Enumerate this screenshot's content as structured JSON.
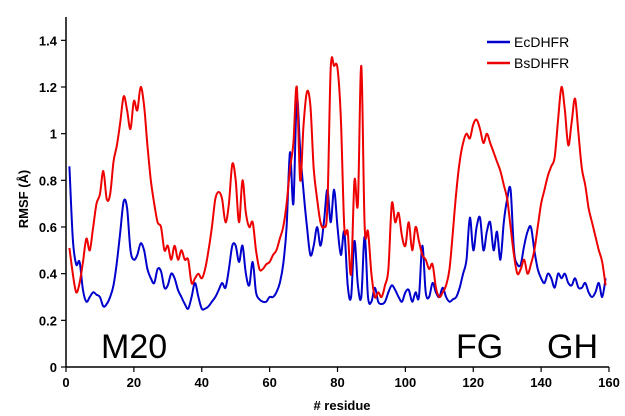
{
  "chart_data": {
    "type": "line",
    "title": "",
    "xlabel": "# residue",
    "ylabel": "RMSF (Å)",
    "xlim": [
      0,
      160
    ],
    "ylim": [
      0,
      1.5
    ],
    "x_ticks": [
      0,
      20,
      40,
      60,
      80,
      100,
      120,
      140,
      160
    ],
    "x_tick_labels": [
      "0",
      "20",
      "40",
      "60",
      "80",
      "100",
      "120",
      "140",
      "160"
    ],
    "y_ticks": [
      0,
      0.2,
      0.4,
      0.6,
      0.8,
      1.0,
      1.2,
      1.4
    ],
    "y_tick_labels": [
      "0",
      "0.2",
      "0.4",
      "0.6",
      "0.8",
      "1",
      "1.2",
      "1.4"
    ],
    "grid": false,
    "legend_position": "top-right",
    "annotations": [
      "M20",
      "FG",
      "GH"
    ],
    "series": [
      {
        "name": "EcDHFR",
        "color": "#0000cc",
        "points": [
          [
            1,
            0.86
          ],
          [
            2,
            0.55
          ],
          [
            3,
            0.44
          ],
          [
            4,
            0.45
          ],
          [
            5,
            0.33
          ],
          [
            6,
            0.28
          ],
          [
            7,
            0.3
          ],
          [
            8,
            0.32
          ],
          [
            9,
            0.31
          ],
          [
            10,
            0.3
          ],
          [
            11,
            0.26
          ],
          [
            12,
            0.27
          ],
          [
            13,
            0.3
          ],
          [
            14,
            0.35
          ],
          [
            15,
            0.45
          ],
          [
            16,
            0.58
          ],
          [
            17,
            0.71
          ],
          [
            18,
            0.68
          ],
          [
            19,
            0.5
          ],
          [
            20,
            0.46
          ],
          [
            21,
            0.48
          ],
          [
            22,
            0.53
          ],
          [
            23,
            0.5
          ],
          [
            24,
            0.42
          ],
          [
            25,
            0.38
          ],
          [
            26,
            0.36
          ],
          [
            27,
            0.42
          ],
          [
            28,
            0.41
          ],
          [
            29,
            0.34
          ],
          [
            30,
            0.35
          ],
          [
            31,
            0.4
          ],
          [
            32,
            0.38
          ],
          [
            33,
            0.33
          ],
          [
            34,
            0.3
          ],
          [
            35,
            0.27
          ],
          [
            36,
            0.25
          ],
          [
            37,
            0.3
          ],
          [
            38,
            0.36
          ],
          [
            39,
            0.3
          ],
          [
            40,
            0.25
          ],
          [
            41,
            0.25
          ],
          [
            42,
            0.26
          ],
          [
            43,
            0.28
          ],
          [
            44,
            0.3
          ],
          [
            45,
            0.33
          ],
          [
            46,
            0.36
          ],
          [
            47,
            0.34
          ],
          [
            48,
            0.42
          ],
          [
            49,
            0.52
          ],
          [
            50,
            0.52
          ],
          [
            51,
            0.45
          ],
          [
            52,
            0.52
          ],
          [
            53,
            0.4
          ],
          [
            54,
            0.35
          ],
          [
            55,
            0.45
          ],
          [
            56,
            0.32
          ],
          [
            57,
            0.29
          ],
          [
            58,
            0.28
          ],
          [
            59,
            0.28
          ],
          [
            60,
            0.3
          ],
          [
            61,
            0.3
          ],
          [
            62,
            0.32
          ],
          [
            63,
            0.36
          ],
          [
            64,
            0.44
          ],
          [
            65,
            0.6
          ],
          [
            66,
            0.92
          ],
          [
            67,
            0.7
          ],
          [
            68,
            1.15
          ],
          [
            69,
            0.93
          ],
          [
            70,
            0.75
          ],
          [
            71,
            0.6
          ],
          [
            72,
            0.48
          ],
          [
            73,
            0.52
          ],
          [
            74,
            0.6
          ],
          [
            75,
            0.52
          ],
          [
            76,
            0.62
          ],
          [
            77,
            0.76
          ],
          [
            78,
            0.62
          ],
          [
            79,
            0.76
          ],
          [
            80,
            0.6
          ],
          [
            81,
            0.48
          ],
          [
            82,
            0.58
          ],
          [
            83,
            0.35
          ],
          [
            84,
            0.3
          ],
          [
            85,
            0.54
          ],
          [
            86,
            0.35
          ],
          [
            87,
            0.3
          ],
          [
            88,
            0.56
          ],
          [
            89,
            0.3
          ],
          [
            90,
            0.28
          ],
          [
            91,
            0.34
          ],
          [
            92,
            0.28
          ],
          [
            93,
            0.27
          ],
          [
            94,
            0.28
          ],
          [
            95,
            0.32
          ],
          [
            96,
            0.35
          ],
          [
            97,
            0.33
          ],
          [
            98,
            0.3
          ],
          [
            99,
            0.28
          ],
          [
            100,
            0.32
          ],
          [
            101,
            0.33
          ],
          [
            102,
            0.28
          ],
          [
            103,
            0.32
          ],
          [
            104,
            0.3
          ],
          [
            105,
            0.52
          ],
          [
            106,
            0.32
          ],
          [
            107,
            0.3
          ],
          [
            108,
            0.36
          ],
          [
            109,
            0.32
          ],
          [
            110,
            0.3
          ],
          [
            111,
            0.34
          ],
          [
            112,
            0.3
          ],
          [
            113,
            0.28
          ],
          [
            114,
            0.29
          ],
          [
            115,
            0.3
          ],
          [
            116,
            0.34
          ],
          [
            117,
            0.4
          ],
          [
            118,
            0.46
          ],
          [
            119,
            0.64
          ],
          [
            120,
            0.5
          ],
          [
            121,
            0.6
          ],
          [
            122,
            0.64
          ],
          [
            123,
            0.5
          ],
          [
            124,
            0.58
          ],
          [
            125,
            0.62
          ],
          [
            126,
            0.5
          ],
          [
            127,
            0.58
          ],
          [
            128,
            0.46
          ],
          [
            129,
            0.62
          ],
          [
            130,
            0.72
          ],
          [
            131,
            0.76
          ],
          [
            132,
            0.5
          ],
          [
            133,
            0.44
          ],
          [
            134,
            0.44
          ],
          [
            135,
            0.52
          ],
          [
            136,
            0.58
          ],
          [
            137,
            0.6
          ],
          [
            138,
            0.5
          ],
          [
            139,
            0.42
          ],
          [
            140,
            0.38
          ],
          [
            141,
            0.36
          ],
          [
            142,
            0.4
          ],
          [
            143,
            0.38
          ],
          [
            144,
            0.34
          ],
          [
            145,
            0.4
          ],
          [
            146,
            0.38
          ],
          [
            147,
            0.4
          ],
          [
            148,
            0.36
          ],
          [
            149,
            0.35
          ],
          [
            150,
            0.38
          ],
          [
            151,
            0.34
          ],
          [
            152,
            0.34
          ],
          [
            153,
            0.36
          ],
          [
            154,
            0.32
          ],
          [
            155,
            0.3
          ],
          [
            156,
            0.32
          ],
          [
            157,
            0.36
          ],
          [
            158,
            0.3
          ],
          [
            159,
            0.38
          ]
        ]
      },
      {
        "name": "BsDHFR",
        "color": "#ee0000",
        "points": [
          [
            1,
            0.51
          ],
          [
            2,
            0.4
          ],
          [
            3,
            0.32
          ],
          [
            4,
            0.36
          ],
          [
            5,
            0.45
          ],
          [
            6,
            0.55
          ],
          [
            7,
            0.5
          ],
          [
            8,
            0.6
          ],
          [
            9,
            0.7
          ],
          [
            10,
            0.74
          ],
          [
            11,
            0.84
          ],
          [
            12,
            0.72
          ],
          [
            13,
            0.74
          ],
          [
            14,
            0.88
          ],
          [
            15,
            0.95
          ],
          [
            16,
            1.05
          ],
          [
            17,
            1.16
          ],
          [
            18,
            1.1
          ],
          [
            19,
            1.02
          ],
          [
            20,
            1.14
          ],
          [
            21,
            1.1
          ],
          [
            22,
            1.2
          ],
          [
            23,
            1.12
          ],
          [
            24,
            0.95
          ],
          [
            25,
            0.8
          ],
          [
            26,
            0.7
          ],
          [
            27,
            0.62
          ],
          [
            28,
            0.6
          ],
          [
            29,
            0.5
          ],
          [
            30,
            0.52
          ],
          [
            31,
            0.46
          ],
          [
            32,
            0.52
          ],
          [
            33,
            0.46
          ],
          [
            34,
            0.5
          ],
          [
            35,
            0.46
          ],
          [
            36,
            0.46
          ],
          [
            37,
            0.36
          ],
          [
            38,
            0.38
          ],
          [
            39,
            0.4
          ],
          [
            40,
            0.38
          ],
          [
            41,
            0.42
          ],
          [
            42,
            0.5
          ],
          [
            43,
            0.6
          ],
          [
            44,
            0.72
          ],
          [
            45,
            0.75
          ],
          [
            46,
            0.72
          ],
          [
            47,
            0.62
          ],
          [
            48,
            0.7
          ],
          [
            49,
            0.87
          ],
          [
            50,
            0.8
          ],
          [
            51,
            0.62
          ],
          [
            52,
            0.8
          ],
          [
            53,
            0.66
          ],
          [
            54,
            0.6
          ],
          [
            55,
            0.62
          ],
          [
            56,
            0.5
          ],
          [
            57,
            0.42
          ],
          [
            58,
            0.42
          ],
          [
            59,
            0.44
          ],
          [
            60,
            0.45
          ],
          [
            61,
            0.48
          ],
          [
            62,
            0.5
          ],
          [
            63,
            0.55
          ],
          [
            64,
            0.6
          ],
          [
            65,
            0.7
          ],
          [
            66,
            0.85
          ],
          [
            67,
            0.96
          ],
          [
            68,
            1.2
          ],
          [
            69,
            0.8
          ],
          [
            70,
            1.04
          ],
          [
            71,
            1.18
          ],
          [
            72,
            1.12
          ],
          [
            73,
            0.85
          ],
          [
            74,
            0.72
          ],
          [
            75,
            0.62
          ],
          [
            76,
            0.6
          ],
          [
            77,
            0.68
          ],
          [
            78,
            1.28
          ],
          [
            79,
            1.29
          ],
          [
            80,
            1.28
          ],
          [
            81,
            1.06
          ],
          [
            82,
            0.6
          ],
          [
            83,
            0.58
          ],
          [
            84,
            0.4
          ],
          [
            85,
            0.8
          ],
          [
            86,
            0.7
          ],
          [
            87,
            1.29
          ],
          [
            88,
            0.6
          ],
          [
            89,
            0.58
          ],
          [
            90,
            0.4
          ],
          [
            91,
            0.3
          ],
          [
            92,
            0.32
          ],
          [
            93,
            0.3
          ],
          [
            94,
            0.35
          ],
          [
            95,
            0.42
          ],
          [
            96,
            0.7
          ],
          [
            97,
            0.62
          ],
          [
            98,
            0.66
          ],
          [
            99,
            0.56
          ],
          [
            100,
            0.52
          ],
          [
            101,
            0.62
          ],
          [
            102,
            0.5
          ],
          [
            103,
            0.6
          ],
          [
            104,
            0.54
          ],
          [
            105,
            0.48
          ],
          [
            106,
            0.46
          ],
          [
            107,
            0.42
          ],
          [
            108,
            0.44
          ],
          [
            109,
            0.34
          ],
          [
            110,
            0.3
          ],
          [
            111,
            0.32
          ],
          [
            112,
            0.35
          ],
          [
            113,
            0.42
          ],
          [
            114,
            0.58
          ],
          [
            115,
            0.75
          ],
          [
            116,
            0.88
          ],
          [
            117,
            0.96
          ],
          [
            118,
            1.0
          ],
          [
            119,
            0.98
          ],
          [
            120,
            1.04
          ],
          [
            121,
            1.06
          ],
          [
            122,
            1.02
          ],
          [
            123,
            0.96
          ],
          [
            124,
            1.0
          ],
          [
            125,
            0.96
          ],
          [
            126,
            0.92
          ],
          [
            127,
            0.88
          ],
          [
            128,
            0.84
          ],
          [
            129,
            0.78
          ],
          [
            130,
            0.72
          ],
          [
            131,
            0.6
          ],
          [
            132,
            0.48
          ],
          [
            133,
            0.4
          ],
          [
            134,
            0.42
          ],
          [
            135,
            0.46
          ],
          [
            136,
            0.4
          ],
          [
            137,
            0.44
          ],
          [
            138,
            0.5
          ],
          [
            139,
            0.6
          ],
          [
            140,
            0.7
          ],
          [
            141,
            0.76
          ],
          [
            142,
            0.82
          ],
          [
            143,
            0.86
          ],
          [
            144,
            0.9
          ],
          [
            145,
            1.06
          ],
          [
            146,
            1.2
          ],
          [
            147,
            1.1
          ],
          [
            148,
            0.95
          ],
          [
            149,
            1.05
          ],
          [
            150,
            1.15
          ],
          [
            151,
            1.0
          ],
          [
            152,
            0.85
          ],
          [
            153,
            0.78
          ],
          [
            154,
            0.68
          ],
          [
            155,
            0.62
          ],
          [
            156,
            0.56
          ],
          [
            157,
            0.5
          ],
          [
            158,
            0.45
          ],
          [
            159,
            0.35
          ]
        ]
      }
    ]
  }
}
